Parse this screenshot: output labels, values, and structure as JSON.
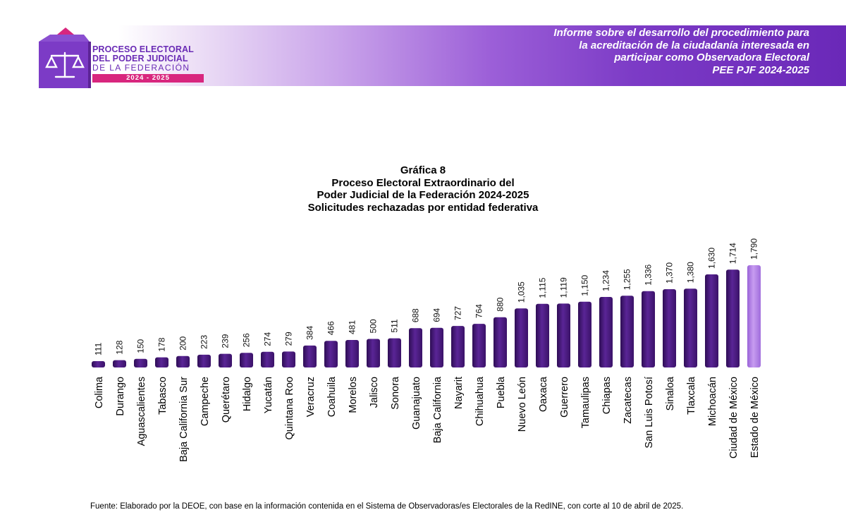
{
  "header": {
    "logo_lines": [
      "PROCESO ELECTORAL",
      "DEL PODER JUDICIAL",
      "DE LA FEDERACIÓN"
    ],
    "logo_years": "2024 - 2025",
    "report_title_lines": [
      "Informe sobre el desarrollo del procedimiento para",
      "la acreditación de la ciudadanía interesada en",
      "participar como Observadora Electoral",
      "PEE PJF 2024-2025"
    ]
  },
  "chart_data": {
    "type": "bar",
    "title_lines": [
      "Gráfica 8",
      "Proceso Electoral Extraordinario del",
      "Poder Judicial de la Federación 2024-2025",
      "Solicitudes rechazadas por entidad federativa"
    ],
    "categories": [
      "Colima",
      "Durango",
      "Aguascalientes",
      "Tabasco",
      "Baja California Sur",
      "Campeche",
      "Querétaro",
      "Hidalgo",
      "Yucatán",
      "Quintana Roo",
      "Veracruz",
      "Coahuila",
      "Morelos",
      "Jalisco",
      "Sonora",
      "Guanajuato",
      "Baja California",
      "Nayarit",
      "Chihuahua",
      "Puebla",
      "Nuevo León",
      "Oaxaca",
      "Guerrero",
      "Tamaulipas",
      "Chiapas",
      "Zacatecas",
      "San Luis Potosí",
      "Sinaloa",
      "Tlaxcala",
      "Michoacán",
      "Ciudad de México",
      "Estado de México"
    ],
    "values": [
      111,
      128,
      150,
      178,
      200,
      223,
      239,
      256,
      274,
      279,
      384,
      466,
      481,
      500,
      511,
      688,
      694,
      727,
      764,
      880,
      1035,
      1115,
      1119,
      1150,
      1234,
      1255,
      1336,
      1370,
      1380,
      1630,
      1714,
      1790
    ],
    "value_labels": [
      "111",
      "128",
      "150",
      "178",
      "200",
      "223",
      "239",
      "256",
      "274",
      "279",
      "384",
      "466",
      "481",
      "500",
      "511",
      "688",
      "694",
      "727",
      "764",
      "880",
      "1,035",
      "1,115",
      "1,119",
      "1,150",
      "1,234",
      "1,255",
      "1,336",
      "1,370",
      "1,380",
      "1,630",
      "1,714",
      "1,790"
    ],
    "ylim": [
      0,
      1790
    ],
    "grid": false,
    "legend": "none",
    "colors": {
      "bar": "#4a1a7e",
      "highlight": "#b07ee6"
    },
    "highlight_index": 31
  },
  "footer": {
    "source_note": "Fuente: Elaborado por la DEOE, con base en la información contenida en el Sistema de Observadoras/es Electorales de la RedINE, con corte al 10 de abril de 2025."
  }
}
